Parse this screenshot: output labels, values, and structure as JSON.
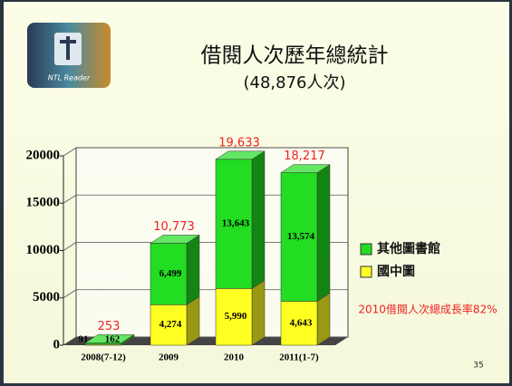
{
  "title": "借閱人次歷年總統計",
  "subtitle": "(48,876人次)",
  "logo_text": "NTL Reader",
  "page_number": "35",
  "chart_data": {
    "type": "bar",
    "stacked": true,
    "categories": [
      "2008(7-12)",
      "2009",
      "2010",
      "2011(1-7)"
    ],
    "series": [
      {
        "name": "國中圖",
        "color": "#ffff22",
        "values": [
          91,
          4274,
          5990,
          4643
        ],
        "value_labels": [
          "91",
          "4,274",
          "5,990",
          "4,643"
        ]
      },
      {
        "name": "其他圖書館",
        "color": "#22dd22",
        "values": [
          162,
          6499,
          13643,
          13574
        ],
        "value_labels": [
          "162",
          "6,499",
          "13,643",
          "13,574"
        ]
      }
    ],
    "totals": {
      "values": [
        253,
        10773,
        19633,
        18217
      ],
      "value_labels": [
        "253",
        "10,773",
        "19,633",
        "18,217"
      ],
      "color": "#ee2222"
    },
    "annotation": "2010借閱人次總成長率82%",
    "ylim": [
      0,
      20000
    ],
    "yticks": [
      0,
      5000,
      10000,
      15000,
      20000
    ],
    "grid": true
  }
}
